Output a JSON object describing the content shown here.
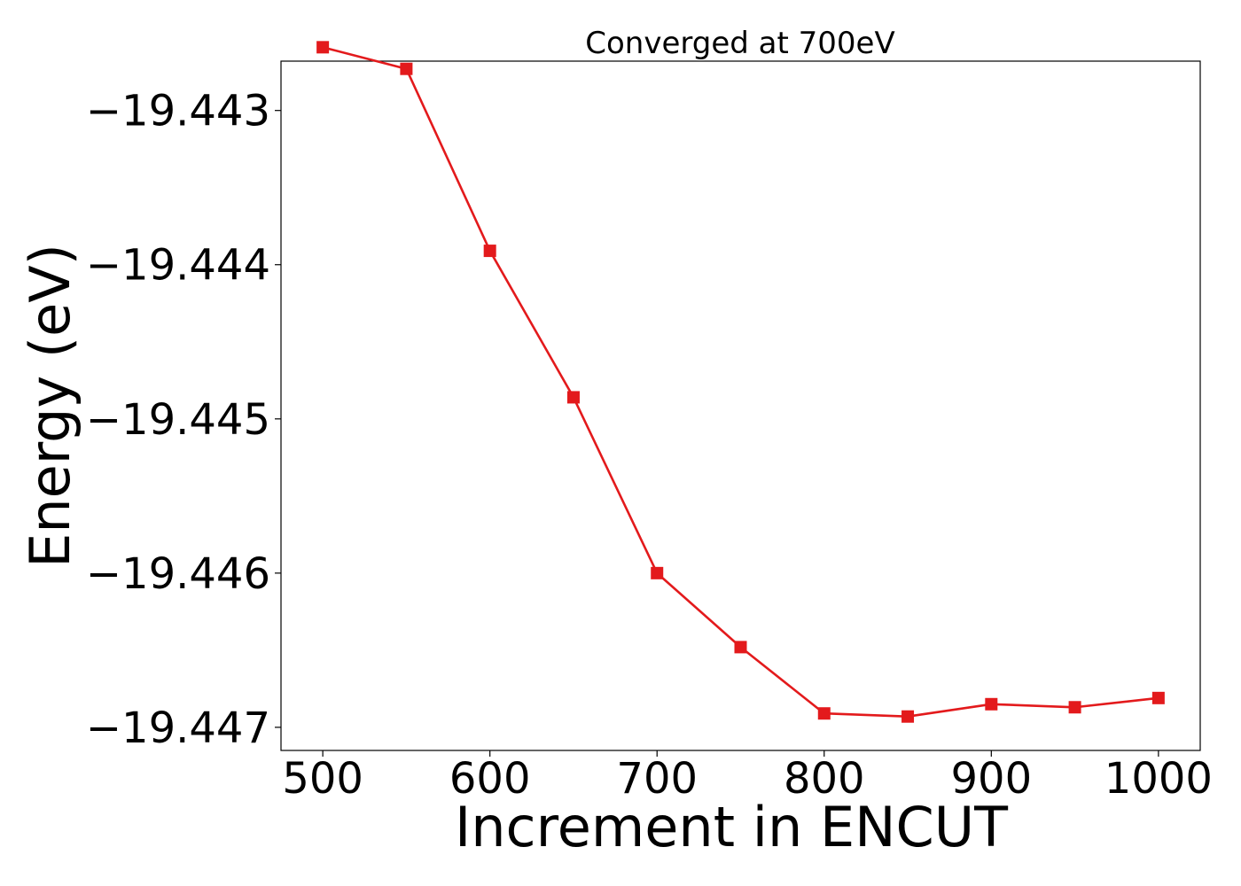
{
  "chart_data": {
    "type": "line",
    "title": "Converged at 700eV",
    "xlabel": "Increment in ENCUT",
    "ylabel": "Energy (eV)",
    "xlim": [
      475,
      1025
    ],
    "ylim": [
      -19.44715,
      -19.44268
    ],
    "xticks": [
      500,
      600,
      700,
      800,
      900,
      1000
    ],
    "xtick_labels": [
      "500",
      "600",
      "700",
      "800",
      "900",
      "1000"
    ],
    "yticks": [
      -19.443,
      -19.444,
      -19.445,
      -19.446,
      -19.447
    ],
    "ytick_labels": [
      "−19.443",
      "−19.444",
      "−19.445",
      "−19.446",
      "−19.447"
    ],
    "grid": false,
    "series": [
      {
        "name": "Energy",
        "color": "#e31a1c",
        "marker": "square",
        "x": [
          500,
          550,
          600,
          650,
          700,
          750,
          800,
          850,
          900,
          950,
          1000
        ],
        "y": [
          -19.44259,
          -19.44273,
          -19.44391,
          -19.44486,
          -19.446,
          -19.44648,
          -19.44691,
          -19.44693,
          -19.44685,
          -19.44687,
          -19.44681
        ]
      }
    ]
  }
}
